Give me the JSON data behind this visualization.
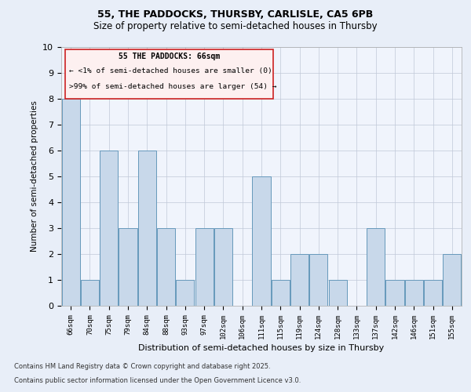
{
  "title1": "55, THE PADDOCKS, THURSBY, CARLISLE, CA5 6PB",
  "title2": "Size of property relative to semi-detached houses in Thursby",
  "xlabel": "Distribution of semi-detached houses by size in Thursby",
  "ylabel": "Number of semi-detached properties",
  "categories": [
    "66sqm",
    "70sqm",
    "75sqm",
    "79sqm",
    "84sqm",
    "88sqm",
    "93sqm",
    "97sqm",
    "102sqm",
    "106sqm",
    "111sqm",
    "115sqm",
    "119sqm",
    "124sqm",
    "128sqm",
    "133sqm",
    "137sqm",
    "142sqm",
    "146sqm",
    "151sqm",
    "155sqm"
  ],
  "values": [
    8,
    1,
    6,
    3,
    6,
    3,
    1,
    3,
    3,
    0,
    5,
    1,
    2,
    2,
    1,
    0,
    3,
    1,
    1,
    1,
    2
  ],
  "highlight_index": 0,
  "bar_color": "#c8d8ea",
  "bar_edge_color": "#6699bb",
  "annotation_text": "55 THE PADDOCKS: 66sqm",
  "annotation_line1": "← <1% of semi-detached houses are smaller (0)",
  "annotation_line2": ">99% of semi-detached houses are larger (54) →",
  "ylim": [
    0,
    10
  ],
  "yticks": [
    0,
    1,
    2,
    3,
    4,
    5,
    6,
    7,
    8,
    9,
    10
  ],
  "footer1": "Contains HM Land Registry data © Crown copyright and database right 2025.",
  "footer2": "Contains public sector information licensed under the Open Government Licence v3.0.",
  "bg_color": "#e8eef8",
  "plot_bg_color": "#f0f4fc"
}
